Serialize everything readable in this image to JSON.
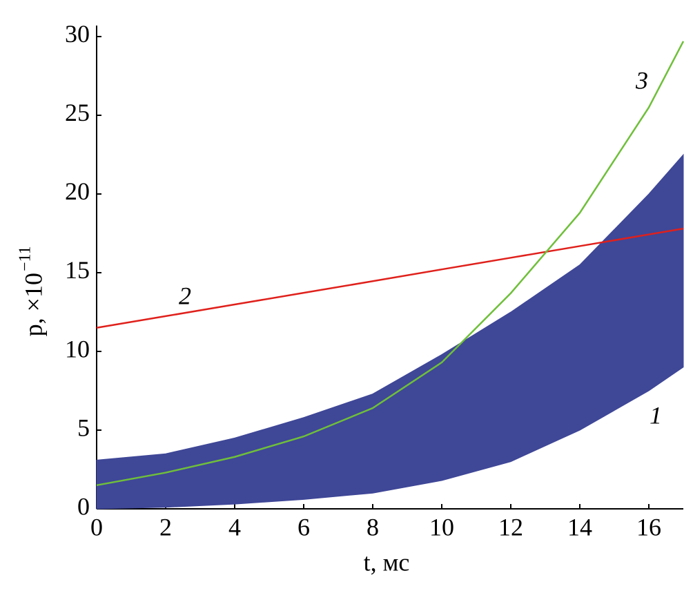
{
  "chart_data": {
    "type": "line",
    "xlabel": "t, мс",
    "ylabel": "p, ×10",
    "ylabel_exponent": "−11",
    "x": [
      0,
      2,
      4,
      6,
      8,
      10,
      12,
      14,
      16,
      17
    ],
    "series": [
      {
        "name": "1",
        "color": "#3f4797",
        "kind": "band",
        "high": [
          3.1,
          3.5,
          4.5,
          5.8,
          7.3,
          9.8,
          12.5,
          15.5,
          20,
          22.5
        ],
        "low": [
          0,
          0.1,
          0.3,
          0.6,
          1,
          1.8,
          3,
          5,
          7.5,
          9
        ]
      },
      {
        "name": "2",
        "color": "#e0201b",
        "values": [
          11.5,
          12.24,
          12.98,
          13.72,
          14.46,
          15.21,
          15.95,
          16.69,
          17.43,
          17.8
        ]
      },
      {
        "name": "3",
        "color": "#6fbf3a",
        "values": [
          1.5,
          2.3,
          3.3,
          4.6,
          6.4,
          9.3,
          13.7,
          18.8,
          25.5,
          29.7
        ]
      }
    ],
    "xlim": [
      0,
      17
    ],
    "ylim": [
      0,
      30.7
    ],
    "xticks": [
      0,
      2,
      4,
      6,
      8,
      10,
      12,
      14,
      16
    ],
    "yticks": [
      0,
      5,
      10,
      15,
      20,
      25,
      30
    ]
  }
}
